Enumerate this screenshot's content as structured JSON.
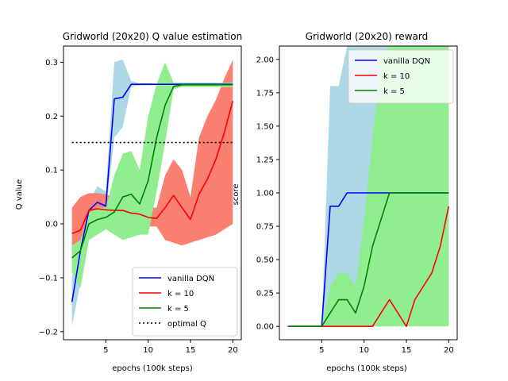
{
  "chart_data": [
    {
      "type": "line",
      "title": "Gridworld (20x20) Q value estimation",
      "xlabel": "epochs (100k steps)",
      "ylabel": "Q value",
      "xlim": [
        0,
        21
      ],
      "ylim": [
        -0.215,
        0.33
      ],
      "xticks": [
        5,
        10,
        15,
        20
      ],
      "yticks": [
        -0.2,
        -0.1,
        0.0,
        0.1,
        0.2,
        0.3
      ],
      "ytick_labels": [
        "−0.2",
        "−0.1",
        "0.0",
        "0.1",
        "0.2",
        "0.3"
      ],
      "grid": false,
      "legend_position": "lower-right",
      "x": [
        1,
        2,
        3,
        4,
        5,
        6,
        7,
        8,
        9,
        10,
        11,
        12,
        13,
        14,
        15,
        16,
        17,
        18,
        19,
        20
      ],
      "series": [
        {
          "name": "vanilla DQN",
          "color": "#0000ff",
          "band_color": "#add8e6",
          "values": [
            -0.145,
            -0.05,
            0.025,
            0.04,
            0.033,
            0.232,
            0.235,
            0.259,
            0.259,
            0.259,
            0.259,
            0.259,
            0.259,
            0.259,
            0.259,
            0.259,
            0.259,
            0.259,
            0.259,
            0.259
          ],
          "upper": [
            -0.1,
            -0.04,
            0.04,
            0.07,
            0.06,
            0.3,
            0.305,
            0.265,
            0.261,
            0.261,
            0.26,
            0.26,
            0.26,
            0.26,
            0.26,
            0.26,
            0.26,
            0.26,
            0.26,
            0.26
          ],
          "lower": [
            -0.19,
            -0.11,
            0.02,
            0.03,
            0.02,
            0.16,
            0.18,
            0.255,
            0.257,
            0.257,
            0.257,
            0.257,
            0.257,
            0.257,
            0.257,
            0.257,
            0.257,
            0.257,
            0.257,
            0.257
          ]
        },
        {
          "name": "k = 10",
          "color": "#ff0000",
          "band_color": "#fa8072",
          "values": [
            -0.018,
            -0.012,
            0.025,
            0.028,
            0.026,
            0.025,
            0.025,
            0.02,
            0.018,
            0.012,
            0.01,
            0.03,
            0.053,
            0.03,
            0.008,
            0.055,
            0.083,
            0.12,
            0.17,
            0.228
          ],
          "upper": [
            0.03,
            0.05,
            0.057,
            0.057,
            0.055,
            0.05,
            0.05,
            0.04,
            0.04,
            0.03,
            0.03,
            0.09,
            0.12,
            0.1,
            0.05,
            0.16,
            0.2,
            0.23,
            0.27,
            0.305
          ],
          "lower": [
            -0.07,
            -0.06,
            -0.01,
            0.0,
            0.0,
            0.0,
            0.0,
            0.0,
            -0.003,
            -0.005,
            -0.005,
            -0.03,
            -0.035,
            -0.04,
            -0.035,
            -0.03,
            -0.025,
            -0.02,
            -0.01,
            0.0
          ]
        },
        {
          "name": "k = 5",
          "color": "#008000",
          "band_color": "#90ee90",
          "values": [
            -0.063,
            -0.05,
            0.0,
            0.008,
            0.012,
            0.022,
            0.05,
            0.055,
            0.037,
            0.08,
            0.16,
            0.22,
            0.255,
            0.258,
            0.258,
            0.258,
            0.258,
            0.258,
            0.258,
            0.258
          ],
          "upper": [
            -0.04,
            -0.03,
            0.02,
            0.03,
            0.03,
            0.09,
            0.13,
            0.135,
            0.1,
            0.2,
            0.26,
            0.3,
            0.262,
            0.262,
            0.262,
            0.262,
            0.262,
            0.262,
            0.262,
            0.262
          ],
          "lower": [
            -0.09,
            -0.12,
            -0.03,
            -0.02,
            -0.01,
            -0.02,
            -0.03,
            -0.025,
            -0.02,
            -0.02,
            0.06,
            0.15,
            0.25,
            0.254,
            0.254,
            0.254,
            0.254,
            0.254,
            0.254,
            0.254
          ]
        },
        {
          "name": "optimal Q",
          "color": "#000000",
          "dashed": true,
          "values": [
            0.151,
            0.151,
            0.151,
            0.151,
            0.151,
            0.151,
            0.151,
            0.151,
            0.151,
            0.151,
            0.151,
            0.151,
            0.151,
            0.151,
            0.151,
            0.151,
            0.151,
            0.151,
            0.151,
            0.151
          ]
        }
      ]
    },
    {
      "type": "line",
      "title": "Gridworld (20x20) reward",
      "xlabel": "epochs (100k steps)",
      "ylabel": "score",
      "xlim": [
        0,
        21
      ],
      "ylim": [
        -0.1,
        2.1
      ],
      "xticks": [
        5,
        10,
        15,
        20
      ],
      "yticks": [
        0.0,
        0.25,
        0.5,
        0.75,
        1.0,
        1.25,
        1.5,
        1.75,
        2.0
      ],
      "ytick_labels": [
        "0.00",
        "0.25",
        "0.50",
        "0.75",
        "1.00",
        "1.25",
        "1.50",
        "1.75",
        "2.00"
      ],
      "grid": false,
      "legend_position": "upper-right",
      "x": [
        1,
        2,
        3,
        4,
        5,
        6,
        7,
        8,
        9,
        10,
        11,
        12,
        13,
        14,
        15,
        16,
        17,
        18,
        19,
        20
      ],
      "series": [
        {
          "name": "vanilla DQN",
          "color": "#0000ff",
          "band_color": "#add8e6",
          "values": [
            0,
            0,
            0,
            0,
            0,
            0.9,
            0.9,
            1.0,
            1.0,
            1.0,
            1.0,
            1.0,
            1.0,
            1.0,
            1.0,
            1.0,
            1.0,
            1.0,
            1.0,
            1.0
          ],
          "upper": [
            0,
            0,
            0,
            0,
            0,
            1.8,
            1.8,
            2.1,
            2.1,
            2.1,
            2.1,
            2.1,
            2.1,
            2.1,
            2.1,
            2.1,
            2.1,
            2.1,
            2.1,
            2.1
          ],
          "lower": [
            0,
            0,
            0,
            0,
            0,
            0,
            0,
            0,
            0,
            0,
            0,
            0,
            0,
            0,
            0,
            0,
            0,
            0,
            0,
            0
          ]
        },
        {
          "name": "k = 10",
          "color": "#ff0000",
          "band_color": "#fa8072",
          "values": [
            0,
            0,
            0,
            0,
            0,
            0,
            0,
            0,
            0,
            0,
            0,
            0.1,
            0.2,
            0.1,
            0,
            0.2,
            0.3,
            0.4,
            0.6,
            0.9
          ],
          "upper": [
            0,
            0,
            0,
            0,
            0,
            0,
            0,
            0,
            0,
            0,
            0,
            0,
            0,
            0,
            0,
            0,
            0,
            0,
            0,
            0
          ],
          "lower": [
            0,
            0,
            0,
            0,
            0,
            0,
            0,
            0,
            0,
            0,
            0,
            0,
            0,
            0,
            0,
            0,
            0,
            0,
            0,
            0
          ]
        },
        {
          "name": "k = 5",
          "color": "#008000",
          "band_color": "#90ee90",
          "values": [
            0,
            0,
            0,
            0,
            0,
            0.1,
            0.2,
            0.2,
            0.1,
            0.3,
            0.6,
            0.8,
            1.0,
            1.0,
            1.0,
            1.0,
            1.0,
            1.0,
            1.0,
            1.0
          ],
          "upper": [
            0,
            0,
            0,
            0,
            0,
            0.3,
            0.4,
            0.4,
            0.3,
            0.8,
            1.4,
            2.0,
            2.1,
            2.1,
            2.1,
            2.1,
            2.1,
            2.1,
            2.1,
            2.1
          ],
          "lower": [
            0,
            0,
            0,
            0,
            0,
            0,
            0,
            0,
            0,
            0,
            0,
            0,
            0,
            0,
            0,
            0,
            0,
            0,
            0,
            0
          ]
        }
      ]
    }
  ]
}
